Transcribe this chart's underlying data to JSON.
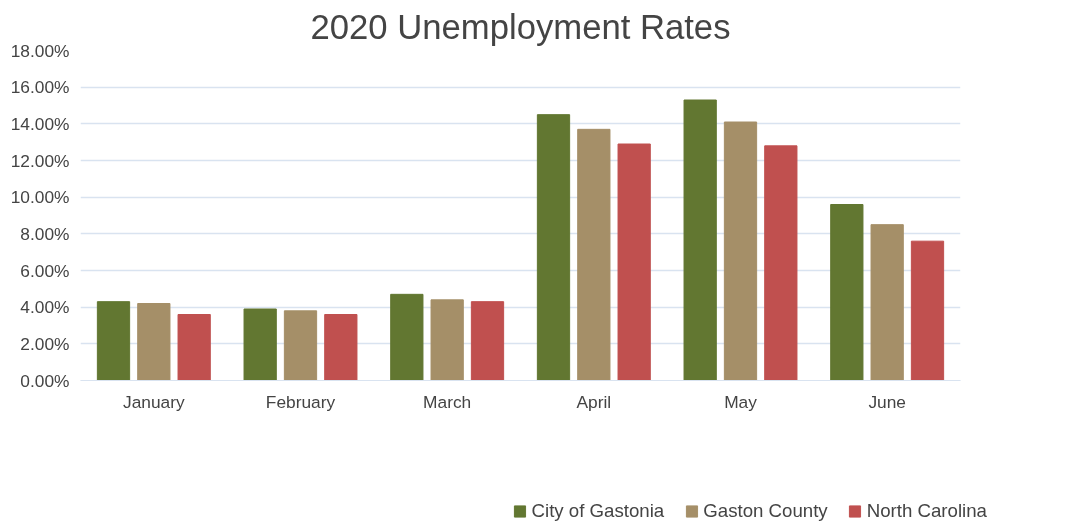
{
  "chart_data": {
    "type": "bar",
    "title": "2020 Unemployment Rates",
    "categories": [
      "January",
      "February",
      "March",
      "April",
      "May",
      "June"
    ],
    "series": [
      {
        "name": "City of Gastonia",
        "color": "#627731",
        "values": [
          4.3,
          3.9,
          4.7,
          14.5,
          15.3,
          9.6
        ]
      },
      {
        "name": "Gaston County",
        "color": "#a58f68",
        "values": [
          4.2,
          3.8,
          4.4,
          13.7,
          14.1,
          8.5
        ]
      },
      {
        "name": "North Carolina",
        "color": "#c0504f",
        "values": [
          3.6,
          3.6,
          4.3,
          12.9,
          12.8,
          7.6
        ]
      }
    ],
    "ylim": [
      0,
      18
    ],
    "yticks": [
      {
        "value": 0,
        "label": "0.00%"
      },
      {
        "value": 2,
        "label": "2.00%"
      },
      {
        "value": 4,
        "label": "4.00%"
      },
      {
        "value": 6,
        "label": "6.00%"
      },
      {
        "value": 8,
        "label": "8.00%"
      },
      {
        "value": 10,
        "label": "10.00%"
      },
      {
        "value": 12,
        "label": "12.00%"
      },
      {
        "value": 14,
        "label": "14.00%"
      },
      {
        "value": 16,
        "label": "16.00%"
      },
      {
        "value": 18,
        "label": "18.00%"
      }
    ],
    "grid": "y",
    "legend": "bottom"
  }
}
